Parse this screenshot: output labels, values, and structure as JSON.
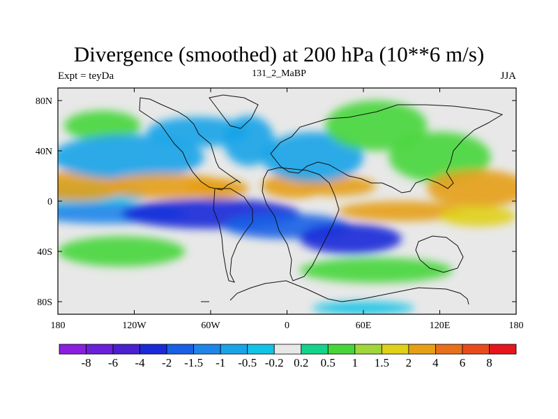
{
  "chart_data": {
    "type": "heatmap",
    "title": "Divergence (smoothed) at 200 hPa (10**6 m/s)",
    "left_string": "Expt = teyDa",
    "center_string": "131_2_MaBP",
    "right_string": "JJA",
    "x_ticks": [
      "180",
      "120W",
      "60W",
      "0",
      "60E",
      "120E",
      "180"
    ],
    "x_tick_values": [
      -180,
      -120,
      -60,
      0,
      60,
      120,
      180
    ],
    "y_ticks": [
      "80N",
      "40N",
      "0",
      "40S",
      "80S"
    ],
    "y_tick_values": [
      80,
      40,
      0,
      -40,
      -80
    ],
    "xlim": [
      -180,
      180
    ],
    "ylim": [
      -90,
      90
    ],
    "colorbar": {
      "labels": [
        "-8",
        "-6",
        "-4",
        "-2",
        "-1.5",
        "-1",
        "-0.5",
        "-0.2",
        "0.2",
        "0.5",
        "1",
        "1.5",
        "2",
        "4",
        "6",
        "8"
      ],
      "colors": [
        "#8a1fe0",
        "#6a1fd8",
        "#4a20d0",
        "#1a2ad8",
        "#1860e6",
        "#1f85ea",
        "#1aa4e8",
        "#11c3e6",
        "#e8e8e8",
        "#13d48a",
        "#47d63a",
        "#a0d63a",
        "#e0d018",
        "#e6a018",
        "#e8701c",
        "#e84c1c",
        "#e6161c"
      ]
    },
    "features": [
      {
        "lon": -170,
        "lat": 5,
        "w": 60,
        "h": 10,
        "v": -0.3
      },
      {
        "lon": -165,
        "lat": 12,
        "w": 40,
        "h": 12,
        "v": 2.5
      },
      {
        "lon": -145,
        "lat": 60,
        "w": 30,
        "h": 12,
        "v": 0.8
      },
      {
        "lon": -125,
        "lat": 35,
        "w": 60,
        "h": 18,
        "v": -1
      },
      {
        "lon": -70,
        "lat": 55,
        "w": 40,
        "h": 12,
        "v": -0.8
      },
      {
        "lon": -95,
        "lat": 12,
        "w": 50,
        "h": 10,
        "v": 2.5
      },
      {
        "lon": -55,
        "lat": 10,
        "w": 25,
        "h": 8,
        "v": 3.5
      },
      {
        "lon": -30,
        "lat": 48,
        "w": 20,
        "h": 20,
        "v": -0.8
      },
      {
        "lon": 5,
        "lat": 12,
        "w": 25,
        "h": 10,
        "v": 2.8
      },
      {
        "lon": 40,
        "lat": 12,
        "w": 30,
        "h": 8,
        "v": 2.3
      },
      {
        "lon": 20,
        "lat": 35,
        "w": 40,
        "h": 20,
        "v": -0.8
      },
      {
        "lon": 70,
        "lat": 60,
        "w": 40,
        "h": 20,
        "v": 0.7
      },
      {
        "lon": 120,
        "lat": 35,
        "w": 40,
        "h": 20,
        "v": 0.8
      },
      {
        "lon": 150,
        "lat": 10,
        "w": 40,
        "h": 15,
        "v": 3.2
      },
      {
        "lon": -140,
        "lat": -10,
        "w": 60,
        "h": 8,
        "v": -1.2
      },
      {
        "lon": -60,
        "lat": -10,
        "w": 70,
        "h": 12,
        "v": -3.2
      },
      {
        "lon": 0,
        "lat": -20,
        "w": 50,
        "h": 10,
        "v": -2
      },
      {
        "lon": 50,
        "lat": -30,
        "w": 40,
        "h": 12,
        "v": -2.5
      },
      {
        "lon": 90,
        "lat": -8,
        "w": 50,
        "h": 8,
        "v": 2.6
      },
      {
        "lon": 150,
        "lat": -12,
        "w": 30,
        "h": 8,
        "v": 1.5
      },
      {
        "lon": -130,
        "lat": -40,
        "w": 50,
        "h": 12,
        "v": 0.8
      },
      {
        "lon": 70,
        "lat": -55,
        "w": 60,
        "h": 10,
        "v": 0.8
      },
      {
        "lon": 60,
        "lat": -85,
        "w": 40,
        "h": 5,
        "v": -0.4
      }
    ]
  }
}
